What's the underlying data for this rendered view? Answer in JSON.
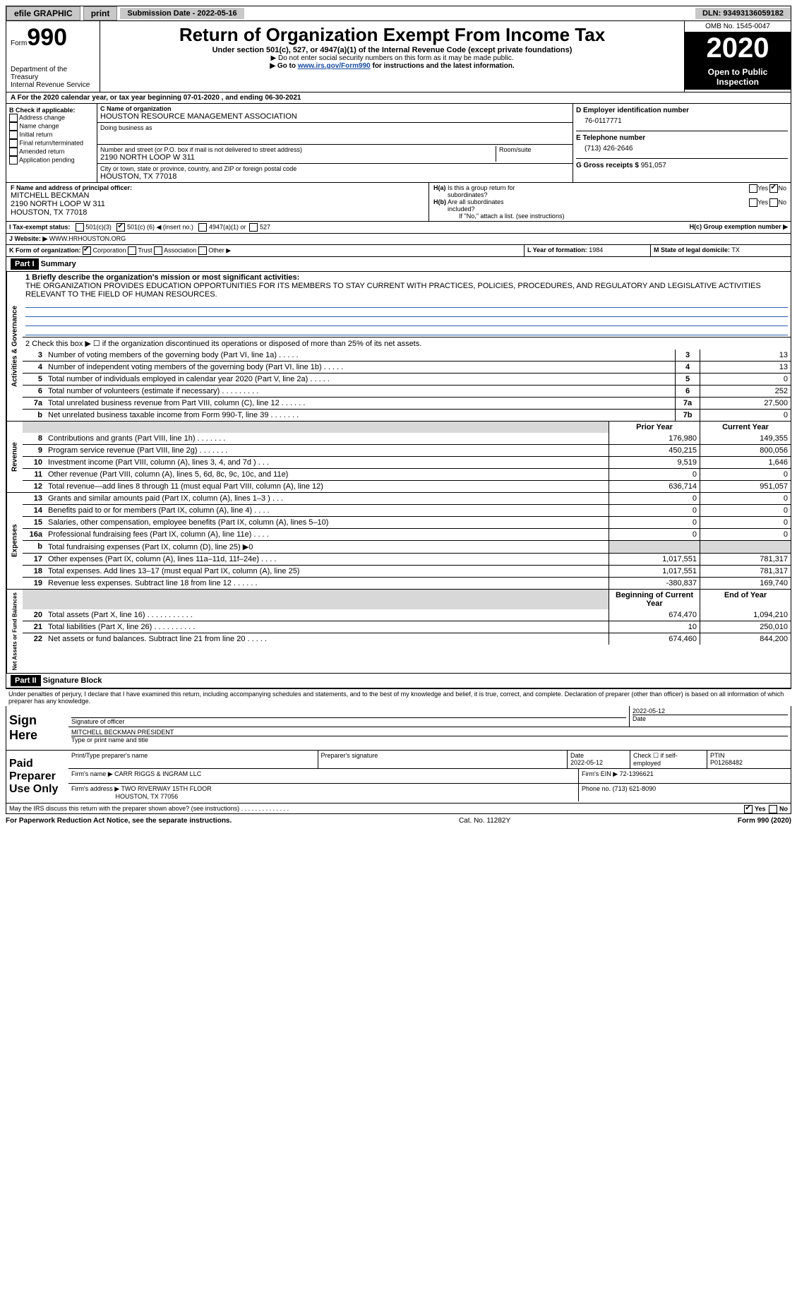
{
  "topbar": {
    "efile": "efile GRAPHIC",
    "print": "print",
    "submission": "Submission Date - 2022-05-16",
    "dln_label": "DLN:",
    "dln": "93493136059182"
  },
  "header": {
    "form": "Form",
    "form_no": "990",
    "dept": "Department of the Treasury",
    "irs": "Internal Revenue Service",
    "title": "Return of Organization Exempt From Income Tax",
    "sub": "Under section 501(c), 527, or 4947(a)(1) of the Internal Revenue Code (except private foundations)",
    "note1": "▶ Do not enter social security numbers on this form as it may be made public.",
    "note2_pre": "▶ Go to ",
    "note2_link": "www.irs.gov/Form990",
    "note2_post": " for instructions and the latest information.",
    "omb": "OMB No. 1545-0047",
    "year": "2020",
    "open": "Open to Public Inspection"
  },
  "lineA": "A For the 2020 calendar year, or tax year beginning 07-01-2020    , and ending 06-30-2021",
  "boxB": {
    "title": "B Check if applicable:",
    "addr": "Address change",
    "name": "Name change",
    "init": "Initial return",
    "final": "Final return/terminated",
    "amend": "Amended return",
    "app": "Application pending"
  },
  "boxC": {
    "label": "C Name of organization",
    "org": "HOUSTON RESOURCE MANAGEMENT ASSOCIATION",
    "dba": "Doing business as",
    "addr_label": "Number and street (or P.O. box if mail is not delivered to street address)",
    "addr": "2190 NORTH LOOP W 311",
    "room": "Room/suite",
    "city_label": "City or town, state or province, country, and ZIP or foreign postal code",
    "city": "HOUSTON, TX  77018"
  },
  "boxD": {
    "label": "D Employer identification number",
    "ein": "76-0117771",
    "tel_label": "E Telephone number",
    "tel": "(713) 426-2646",
    "gross_label": "G Gross receipts $",
    "gross": "951,057"
  },
  "boxF": {
    "label": "F Name and address of principal officer:",
    "name": "MITCHELL BECKMAN",
    "addr1": "2190 NORTH LOOP W 311",
    "addr2": "HOUSTON, TX  77018"
  },
  "boxH": {
    "ha": "H(a) Is this a group return for subordinates?",
    "hb": "H(b) Are all subordinates included?",
    "hb_note": "If \"No,\" attach a list. (see instructions)",
    "hc": "H(c) Group exemption number ▶",
    "yes": "Yes",
    "no": "No"
  },
  "boxI": {
    "label": "I    Tax-exempt status:",
    "o1": "501(c)(3)",
    "o2_pre": "501(c) (",
    "o2_val": "6",
    "o2_post": ") ◀ (insert no.)",
    "o3": "4947(a)(1) or",
    "o4": "527"
  },
  "boxJ": {
    "label": "J    Website: ▶",
    "val": "WWW.HRHOUSTON.ORG"
  },
  "boxK": {
    "label": "K Form of organization:",
    "corp": "Corporation",
    "trust": "Trust",
    "assoc": "Association",
    "other": "Other ▶"
  },
  "boxL": {
    "label": "L Year of formation:",
    "val": "1984"
  },
  "boxM": {
    "label": "M State of legal domicile:",
    "val": "TX"
  },
  "part1": {
    "title": "Part I",
    "summary": "Summary",
    "l1_label": "1 Briefly describe the organization's mission or most significant activities:",
    "l1_text": "THE ORGANIZATION PROVIDES EDUCATION OPPORTUNITIES FOR ITS MEMBERS TO STAY CURRENT WITH PRACTICES, POLICIES, PROCEDURES, AND REGULATORY AND LEGISLATIVE ACTIVITIES RELEVANT TO THE FIELD OF HUMAN RESOURCES.",
    "l2": "2   Check this box ▶ ☐  if the organization discontinued its operations or disposed of more than 25% of its net assets.",
    "side_gov": "Activities & Governance",
    "side_rev": "Revenue",
    "side_exp": "Expenses",
    "side_net": "Net Assets or Fund Balances",
    "hdr_prior": "Prior Year",
    "hdr_curr": "Current Year",
    "hdr_beg": "Beginning of Current Year",
    "hdr_end": "End of Year",
    "rows_gov": [
      {
        "n": "3",
        "d": "Number of voting members of the governing body (Part VI, line 1a)   .    .    .    .    .",
        "box": "3",
        "v": "13"
      },
      {
        "n": "4",
        "d": "Number of independent voting members of the governing body (Part VI, line 1b)   .    .    .    .    .",
        "box": "4",
        "v": "13"
      },
      {
        "n": "5",
        "d": "Total number of individuals employed in calendar year 2020 (Part V, line 2a)   .    .    .    .    .",
        "box": "5",
        "v": "0"
      },
      {
        "n": "6",
        "d": "Total number of volunteers (estimate if necessary)   .    .    .    .    .    .    .    .    .",
        "box": "6",
        "v": "252"
      },
      {
        "n": "7a",
        "d": "Total unrelated business revenue from Part VIII, column (C), line 12   .    .    .    .    .    .",
        "box": "7a",
        "v": "27,500"
      },
      {
        "n": "b",
        "d": "Net unrelated business taxable income from Form 990-T, line 39   .    .    .    .    .    .    .",
        "box": "7b",
        "v": "0"
      }
    ],
    "rows_rev": [
      {
        "n": "8",
        "d": "Contributions and grants (Part VIII, line 1h)   .    .    .    .    .    .    .",
        "p": "176,980",
        "c": "149,355"
      },
      {
        "n": "9",
        "d": "Program service revenue (Part VIII, line 2g)   .    .    .    .    .    .    .",
        "p": "450,215",
        "c": "800,056"
      },
      {
        "n": "10",
        "d": "Investment income (Part VIII, column (A), lines 3, 4, and 7d )   .    .    .",
        "p": "9,519",
        "c": "1,646"
      },
      {
        "n": "11",
        "d": "Other revenue (Part VIII, column (A), lines 5, 6d, 8c, 9c, 10c, and 11e)",
        "p": "0",
        "c": "0"
      },
      {
        "n": "12",
        "d": "Total revenue—add lines 8 through 11 (must equal Part VIII, column (A), line 12)",
        "p": "636,714",
        "c": "951,057"
      }
    ],
    "rows_exp": [
      {
        "n": "13",
        "d": "Grants and similar amounts paid (Part IX, column (A), lines 1–3 )   .    .    .",
        "p": "0",
        "c": "0"
      },
      {
        "n": "14",
        "d": "Benefits paid to or for members (Part IX, column (A), line 4)   .    .    .    .",
        "p": "0",
        "c": "0"
      },
      {
        "n": "15",
        "d": "Salaries, other compensation, employee benefits (Part IX, column (A), lines 5–10)",
        "p": "0",
        "c": "0"
      },
      {
        "n": "16a",
        "d": "Professional fundraising fees (Part IX, column (A), line 11e)   .    .    .    .",
        "p": "0",
        "c": "0"
      },
      {
        "n": "b",
        "d": "Total fundraising expenses (Part IX, column (D), line 25) ▶0",
        "p": "",
        "c": "",
        "shade": true
      },
      {
        "n": "17",
        "d": "Other expenses (Part IX, column (A), lines 11a–11d, 11f–24e)   .    .    .    .",
        "p": "1,017,551",
        "c": "781,317"
      },
      {
        "n": "18",
        "d": "Total expenses. Add lines 13–17 (must equal Part IX, column (A), line 25)",
        "p": "1,017,551",
        "c": "781,317"
      },
      {
        "n": "19",
        "d": "Revenue less expenses. Subtract line 18 from line 12   .    .    .    .    .    .",
        "p": "-380,837",
        "c": "169,740"
      }
    ],
    "rows_net": [
      {
        "n": "20",
        "d": "Total assets (Part X, line 16)   .    .    .    .    .    .    .    .    .    .    .",
        "p": "674,470",
        "c": "1,094,210"
      },
      {
        "n": "21",
        "d": "Total liabilities (Part X, line 26)   .    .    .    .    .    .    .    .    .    .",
        "p": "10",
        "c": "250,010"
      },
      {
        "n": "22",
        "d": "Net assets or fund balances. Subtract line 21 from line 20   .    .    .    .    .",
        "p": "674,460",
        "c": "844,200"
      }
    ]
  },
  "part2": {
    "title": "Part II",
    "sig": "Signature Block",
    "decl": "Under penalties of perjury, I declare that I have examined this return, including accompanying schedules and statements, and to the best of my knowledge and belief, it is true, correct, and complete. Declaration of preparer (other than officer) is based on all information of which preparer has any knowledge.",
    "sign_here": "Sign Here",
    "sig_off": "Signature of officer",
    "sig_date": "2022-05-12",
    "date": "Date",
    "typed": "MITCHELL BECKMAN  PRESIDENT",
    "typed_lab": "Type or print name and title",
    "paid": "Paid Preparer Use Only",
    "pp_name_h": "Print/Type preparer's name",
    "pp_sig_h": "Preparer's signature",
    "pp_date_h": "Date",
    "pp_date": "2022-05-12",
    "pp_check": "Check ☐ if self-employed",
    "pp_ptin_h": "PTIN",
    "pp_ptin": "P01268482",
    "firm_name_h": "Firm's name    ▶",
    "firm_name": "CARR RIGGS & INGRAM LLC",
    "firm_ein_h": "Firm's EIN ▶",
    "firm_ein": "72-1396621",
    "firm_addr_h": "Firm's address ▶",
    "firm_addr1": "TWO RIVERWAY 15TH FLOOR",
    "firm_addr2": "HOUSTON, TX  77056",
    "firm_phone_h": "Phone no.",
    "firm_phone": "(713) 621-8090",
    "may": "May the IRS discuss this return with the preparer shown above? (see instructions)   .    .    .    .    .    .    .    .    .    .    .    .    .    .",
    "yes": "Yes",
    "no": "No"
  },
  "footer": {
    "left": "For Paperwork Reduction Act Notice, see the separate instructions.",
    "mid": "Cat. No. 11282Y",
    "right": "Form 990 (2020)"
  }
}
